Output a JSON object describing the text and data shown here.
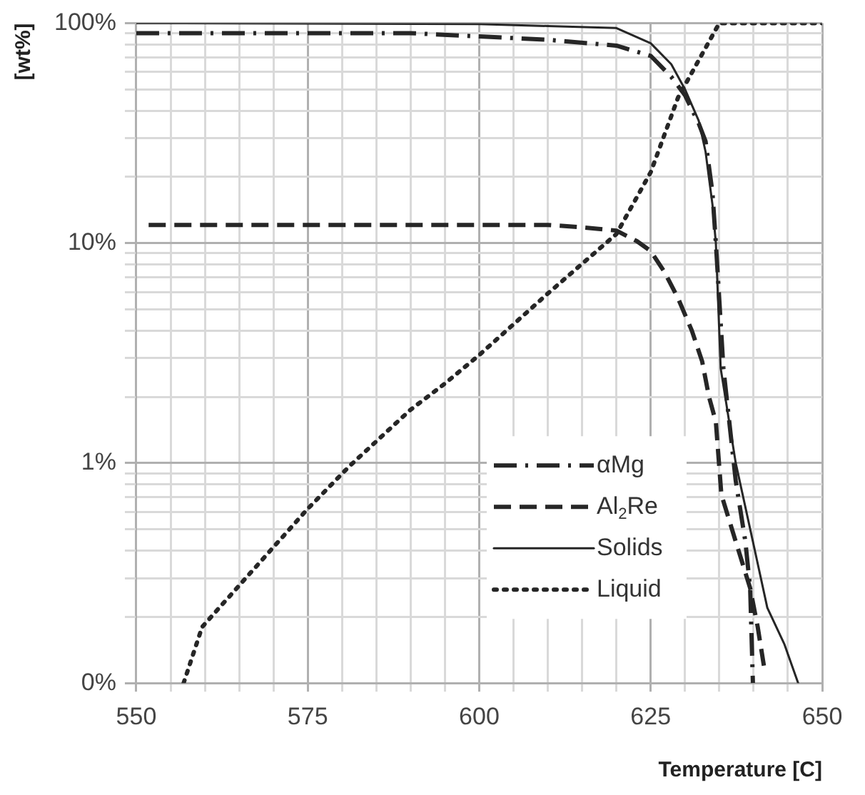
{
  "chart_data": {
    "type": "line",
    "xlabel": "Temperature [C]",
    "ylabel": "[wt%]",
    "log": "y",
    "grid": true,
    "legend": "bottom right",
    "marker": "none",
    "xlim": [
      550,
      650
    ],
    "xticks": [
      550,
      {
        "value": 555,
        "label": null
      },
      {
        "value": 560,
        "label": null
      },
      {
        "value": 565,
        "label": null
      },
      {
        "value": 570,
        "label": null
      },
      575,
      {
        "value": 580,
        "label": null
      },
      {
        "value": 585,
        "label": null
      },
      {
        "value": 590,
        "label": null
      },
      {
        "value": 595,
        "label": null
      },
      600,
      {
        "value": 605,
        "label": null
      },
      {
        "value": 610,
        "label": null
      },
      {
        "value": 615,
        "label": null
      },
      {
        "value": 620,
        "label": null
      },
      625,
      {
        "value": 630,
        "label": null
      },
      {
        "value": 635,
        "label": null
      },
      {
        "value": 640,
        "label": null
      },
      {
        "value": 645,
        "label": null
      },
      650
    ],
    "ylim": [
      0.1,
      100
    ],
    "yticks": [
      {
        "value": 0.1,
        "label": "0%"
      },
      {
        "value": 0.2,
        "label": null
      },
      {
        "value": 0.3,
        "label": null
      },
      {
        "value": 0.4,
        "label": null
      },
      {
        "value": 0.5,
        "label": null
      },
      {
        "value": 0.6,
        "label": null
      },
      {
        "value": 0.7,
        "label": null
      },
      {
        "value": 0.8,
        "label": null
      },
      {
        "value": 0.9,
        "label": null
      },
      {
        "value": 1,
        "label": "1%"
      },
      {
        "value": 2,
        "label": null
      },
      {
        "value": 3,
        "label": null
      },
      {
        "value": 4,
        "label": null
      },
      {
        "value": 5,
        "label": null
      },
      {
        "value": 6,
        "label": null
      },
      {
        "value": 7,
        "label": null
      },
      {
        "value": 8,
        "label": null
      },
      {
        "value": 9,
        "label": null
      },
      {
        "value": 10,
        "label": "10%"
      },
      {
        "value": 20,
        "label": null
      },
      {
        "value": 30,
        "label": null
      },
      {
        "value": 40,
        "label": null
      },
      {
        "value": 50,
        "label": null
      },
      {
        "value": 60,
        "label": null
      },
      {
        "value": 70,
        "label": null
      },
      {
        "value": 80,
        "label": null
      },
      {
        "value": 90,
        "label": null
      },
      {
        "value": 100,
        "label": "100%"
      }
    ],
    "series": [
      {
        "name": "αMg",
        "color": "#262626",
        "line_style": "dashdot",
        "x": [
          550,
          590,
          600,
          610,
          620,
          625,
          628,
          630,
          632,
          633,
          634,
          634.5,
          635.6,
          637.4,
          638.8,
          639.5,
          639.9
        ],
        "values": [
          90,
          90,
          87,
          84,
          79,
          71,
          57,
          47,
          35,
          29,
          17,
          10,
          2.7,
          0.83,
          0.44,
          0.27,
          0.1
        ]
      },
      {
        "name": "Al$_{2}$Re",
        "color": "#262626",
        "line_style": "dashed",
        "x": [
          551.8,
          610,
          615,
          620,
          623,
          625,
          627,
          629,
          631,
          632.5,
          633.5,
          634.5,
          635.3,
          637.4,
          639.5,
          640.6,
          641.5
        ],
        "values": [
          12.1,
          12.1,
          11.8,
          11.4,
          10.2,
          9.2,
          7.4,
          5.6,
          4,
          2.9,
          2,
          1.54,
          0.72,
          0.44,
          0.27,
          0.18,
          0.12
        ]
      },
      {
        "name": "Solids",
        "color": "#262626",
        "line_style": "solid",
        "x": [
          550,
          600,
          610,
          620,
          625,
          628,
          630,
          632,
          633,
          634,
          634.5,
          635.2,
          637.4,
          639.9,
          642,
          644.5,
          646.5
        ],
        "values": [
          100,
          99,
          97,
          95,
          81,
          65,
          50,
          36,
          26,
          15,
          10,
          2.7,
          1,
          0.44,
          0.22,
          0.15,
          0.1
        ]
      },
      {
        "name": "Liquid",
        "color": "#262626",
        "line_style": "dotted",
        "x": [
          556.9,
          559.6,
          575,
          581.1,
          590,
          595,
          600,
          610,
          620,
          625,
          629,
          635,
          650
        ],
        "values": [
          0.1,
          0.18,
          0.62,
          0.97,
          1.75,
          2.3,
          3.1,
          5.9,
          11,
          21,
          46,
          100,
          100
        ]
      }
    ]
  }
}
